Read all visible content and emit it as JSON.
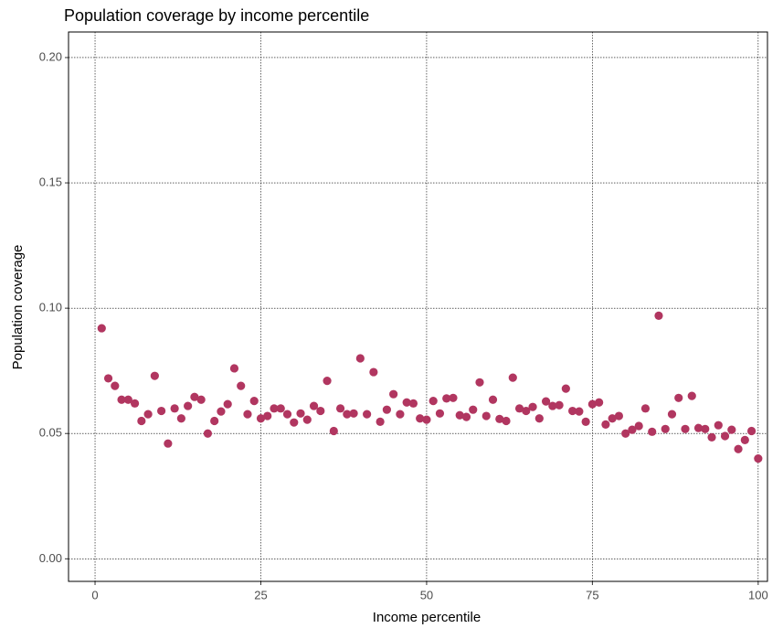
{
  "chart_data": {
    "type": "scatter",
    "title": "Population coverage by income percentile",
    "x_label": "Income percentile",
    "y_label": "Population coverage",
    "color": "#b13660",
    "grid": true,
    "xlim": [
      -4,
      101.4
    ],
    "ylim": [
      -0.009,
      0.2102
    ],
    "xticks": [
      0,
      25,
      50,
      75,
      100
    ],
    "yticks": [
      {
        "value": 0,
        "label": "0.00"
      },
      0.05,
      {
        "value": 0.1,
        "label": "0.10"
      },
      0.15,
      {
        "value": 0.2,
        "label": "0.20"
      }
    ],
    "x": [
      1,
      2,
      3,
      4,
      5,
      6,
      7,
      8,
      9,
      10,
      11,
      12,
      13,
      14,
      15,
      16,
      17,
      18,
      19,
      20,
      21,
      22,
      23,
      24,
      25,
      26,
      27,
      28,
      29,
      30,
      31,
      32,
      33,
      34,
      35,
      36,
      37,
      38,
      39,
      40,
      41,
      42,
      43,
      44,
      45,
      46,
      47,
      48,
      49,
      50,
      51,
      52,
      53,
      54,
      55,
      56,
      57,
      58,
      59,
      60,
      61,
      62,
      63,
      64,
      65,
      66,
      67,
      68,
      69,
      70,
      71,
      72,
      73,
      74,
      75,
      76,
      77,
      78,
      79,
      80,
      81,
      82,
      83,
      84,
      85,
      86,
      87,
      88,
      89,
      90,
      91,
      92,
      93,
      94,
      95,
      96,
      97,
      98,
      99,
      100
    ],
    "values": [
      0.092,
      0.072,
      0.069,
      0.0635,
      0.0635,
      0.062,
      0.055,
      0.0577,
      0.073,
      0.059,
      0.046,
      0.06,
      0.056,
      0.061,
      0.0646,
      0.0635,
      0.05,
      0.055,
      0.0588,
      0.0617,
      0.076,
      0.069,
      0.0577,
      0.063,
      0.056,
      0.057,
      0.06,
      0.06,
      0.0577,
      0.0544,
      0.058,
      0.0555,
      0.061,
      0.059,
      0.071,
      0.051,
      0.06,
      0.0577,
      0.058,
      0.08,
      0.0577,
      0.0745,
      0.0547,
      0.0595,
      0.0657,
      0.0577,
      0.0624,
      0.062,
      0.056,
      0.0555,
      0.063,
      0.058,
      0.064,
      0.0642,
      0.0573,
      0.0566,
      0.0595,
      0.0704,
      0.057,
      0.0635,
      0.0558,
      0.055,
      0.0723,
      0.06,
      0.059,
      0.0606,
      0.056,
      0.0628,
      0.061,
      0.0613,
      0.0679,
      0.059,
      0.0588,
      0.0547,
      0.0617,
      0.0624,
      0.0536,
      0.056,
      0.057,
      0.05,
      0.0515,
      0.053,
      0.06,
      0.0507,
      0.097,
      0.0518,
      0.0577,
      0.0642,
      0.0518,
      0.065,
      0.0522,
      0.0518,
      0.0485,
      0.0533,
      0.049,
      0.0515,
      0.0438,
      0.0474,
      0.051,
      0.04
    ]
  }
}
